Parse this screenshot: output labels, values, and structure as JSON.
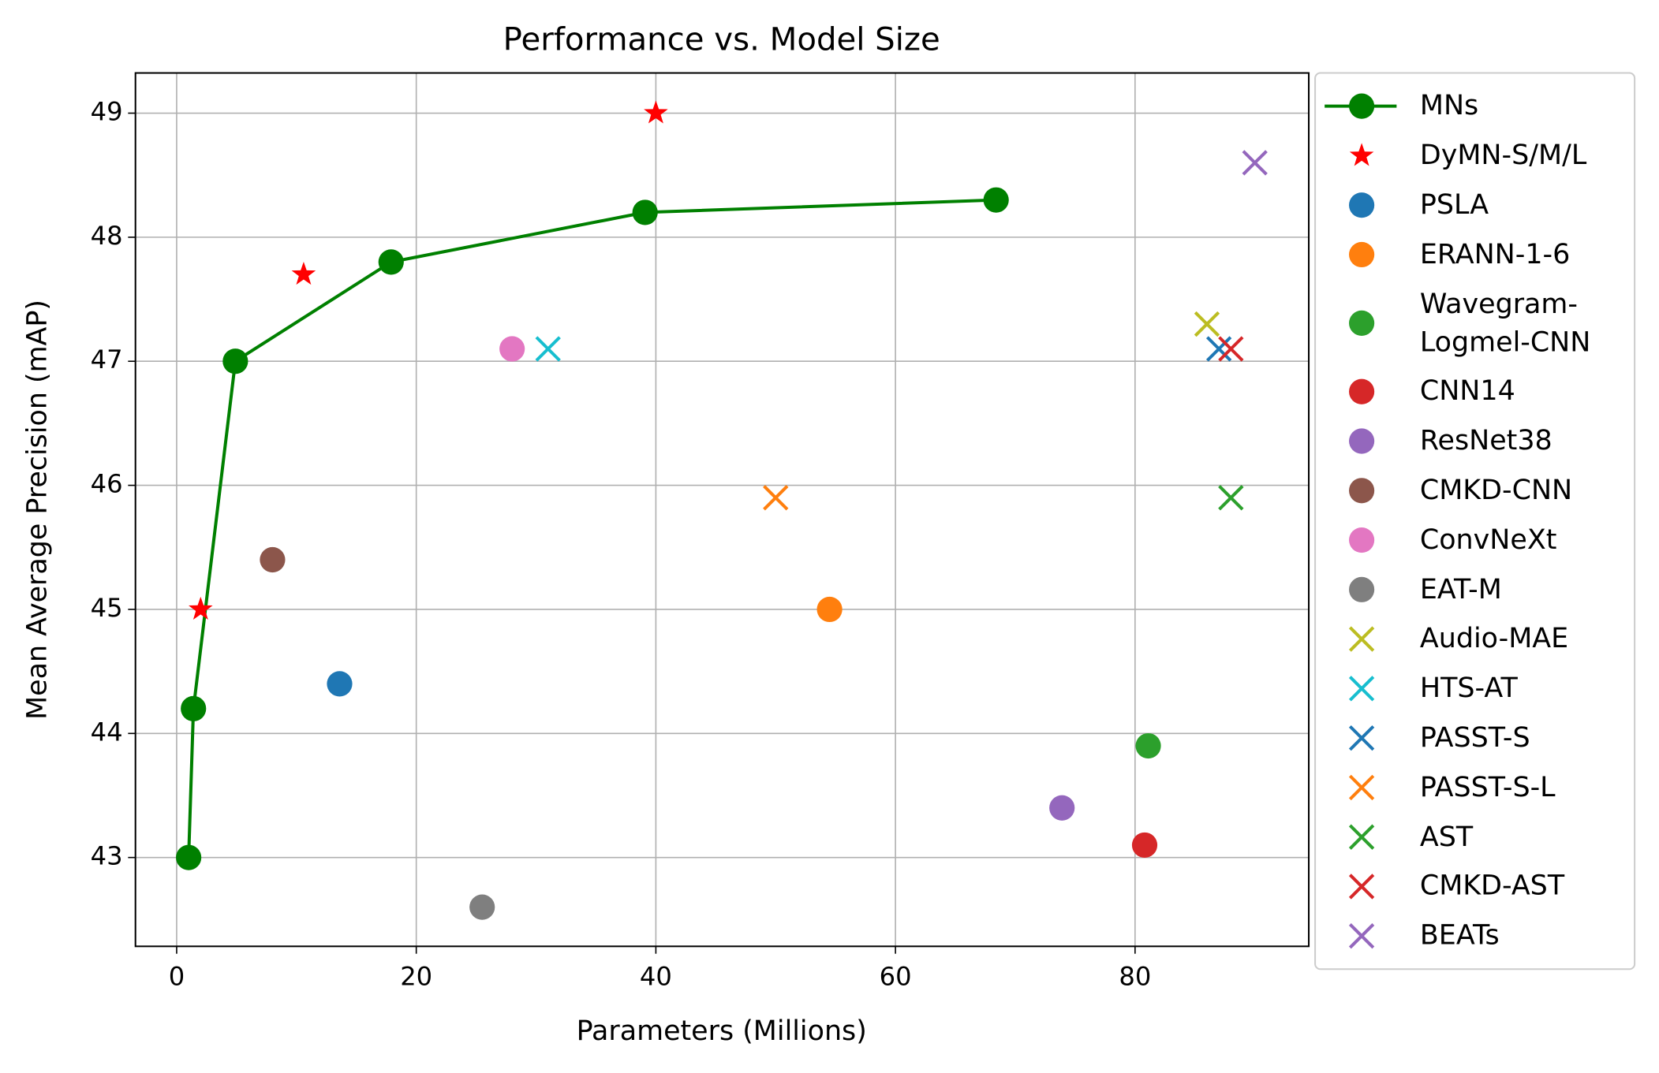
{
  "chart_data": {
    "type": "scatter",
    "title": "Performance vs. Model Size",
    "xlabel": "Parameters (Millions)",
    "ylabel": "Mean Average Precision (mAP)",
    "xlim": [
      -3.44,
      94.5
    ],
    "ylim": [
      42.284,
      49.324
    ],
    "xticks": [
      0,
      20,
      40,
      60,
      80
    ],
    "yticks": [
      43,
      44,
      45,
      46,
      47,
      48,
      49
    ],
    "grid": true,
    "legend": "outside right",
    "series": [
      {
        "name": "MNs",
        "color": "#008000",
        "marker": "o",
        "line": true,
        "x": [
          1.0,
          1.4,
          4.9,
          17.9,
          39.1,
          68.4
        ],
        "values": [
          43.0,
          44.2,
          47.0,
          47.8,
          48.2,
          48.3
        ]
      },
      {
        "name": "DyMN-S/M/L",
        "color": "#ff0000",
        "marker": "*",
        "x": [
          2.0,
          10.6,
          40.0
        ],
        "values": [
          45.0,
          47.7,
          49.0
        ]
      },
      {
        "name": "PSLA",
        "color": "#1f77b4",
        "marker": "o",
        "x": [
          13.6
        ],
        "values": [
          44.4
        ]
      },
      {
        "name": "ERANN-1-6",
        "color": "#ff7f0e",
        "marker": "o",
        "x": [
          54.5
        ],
        "values": [
          45.0
        ]
      },
      {
        "name": "Wavegram-\nLogmel-CNN",
        "color": "#2ca02c",
        "marker": "o",
        "x": [
          81.1
        ],
        "values": [
          43.9
        ]
      },
      {
        "name": "CNN14",
        "color": "#d62728",
        "marker": "o",
        "x": [
          80.8
        ],
        "values": [
          43.1
        ]
      },
      {
        "name": "ResNet38",
        "color": "#9467bd",
        "marker": "o",
        "x": [
          73.9
        ],
        "values": [
          43.4
        ]
      },
      {
        "name": "CMKD-CNN",
        "color": "#8c564b",
        "marker": "o",
        "x": [
          8.0
        ],
        "values": [
          45.4
        ]
      },
      {
        "name": "ConvNeXt",
        "color": "#e377c2",
        "marker": "o",
        "x": [
          28.0
        ],
        "values": [
          47.1
        ]
      },
      {
        "name": "EAT-M",
        "color": "#7f7f7f",
        "marker": "o",
        "x": [
          25.5
        ],
        "values": [
          42.6
        ]
      },
      {
        "name": "Audio-MAE",
        "color": "#bcbd22",
        "marker": "x",
        "x": [
          86.0
        ],
        "values": [
          47.3
        ]
      },
      {
        "name": "HTS-AT",
        "color": "#17becf",
        "marker": "x",
        "x": [
          31.0
        ],
        "values": [
          47.1
        ]
      },
      {
        "name": "PASST-S",
        "color": "#1f77b4",
        "marker": "x",
        "x": [
          87.0
        ],
        "values": [
          47.1
        ]
      },
      {
        "name": "PASST-S-L",
        "color": "#ff7f0e",
        "marker": "x",
        "x": [
          50.0
        ],
        "values": [
          45.9
        ]
      },
      {
        "name": "AST",
        "color": "#2ca02c",
        "marker": "x",
        "x": [
          88.0
        ],
        "values": [
          45.9
        ]
      },
      {
        "name": "CMKD-AST",
        "color": "#d62728",
        "marker": "x",
        "x": [
          88.0
        ],
        "values": [
          47.1
        ]
      },
      {
        "name": "BEATs",
        "color": "#9467bd",
        "marker": "x",
        "x": [
          90.0
        ],
        "values": [
          48.6
        ]
      }
    ]
  }
}
